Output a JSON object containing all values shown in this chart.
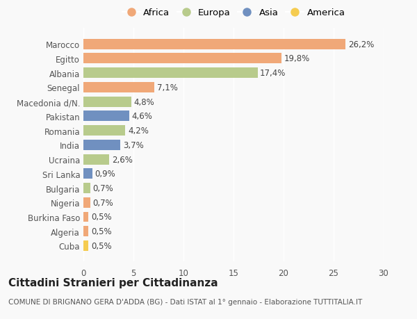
{
  "countries": [
    "Cuba",
    "Algeria",
    "Burkina Faso",
    "Nigeria",
    "Bulgaria",
    "Sri Lanka",
    "Ucraina",
    "India",
    "Romania",
    "Pakistan",
    "Macedonia d/N.",
    "Senegal",
    "Albania",
    "Egitto",
    "Marocco"
  ],
  "values": [
    0.5,
    0.5,
    0.5,
    0.7,
    0.7,
    0.9,
    2.6,
    3.7,
    4.2,
    4.6,
    4.8,
    7.1,
    17.4,
    19.8,
    26.2
  ],
  "continents": [
    "America",
    "Africa",
    "Africa",
    "Africa",
    "Europa",
    "Asia",
    "Europa",
    "Asia",
    "Europa",
    "Asia",
    "Europa",
    "Africa",
    "Europa",
    "Africa",
    "Africa"
  ],
  "colors": {
    "Africa": "#F0A878",
    "Europa": "#B8CB8C",
    "Asia": "#7090C0",
    "America": "#F5CC50"
  },
  "legend_order": [
    "Africa",
    "Europa",
    "Asia",
    "America"
  ],
  "title": "Cittadini Stranieri per Cittadinanza",
  "subtitle": "COMUNE DI BRIGNANO GERA D'ADDA (BG) - Dati ISTAT al 1° gennaio - Elaborazione TUTTITALIA.IT",
  "xlim": [
    0,
    30
  ],
  "xticks": [
    0,
    5,
    10,
    15,
    20,
    25,
    30
  ],
  "background_color": "#f9f9f9",
  "bar_height": 0.72,
  "label_fontsize": 8.5,
  "title_fontsize": 11,
  "subtitle_fontsize": 7.5,
  "tick_fontsize": 8.5,
  "legend_fontsize": 9.5
}
